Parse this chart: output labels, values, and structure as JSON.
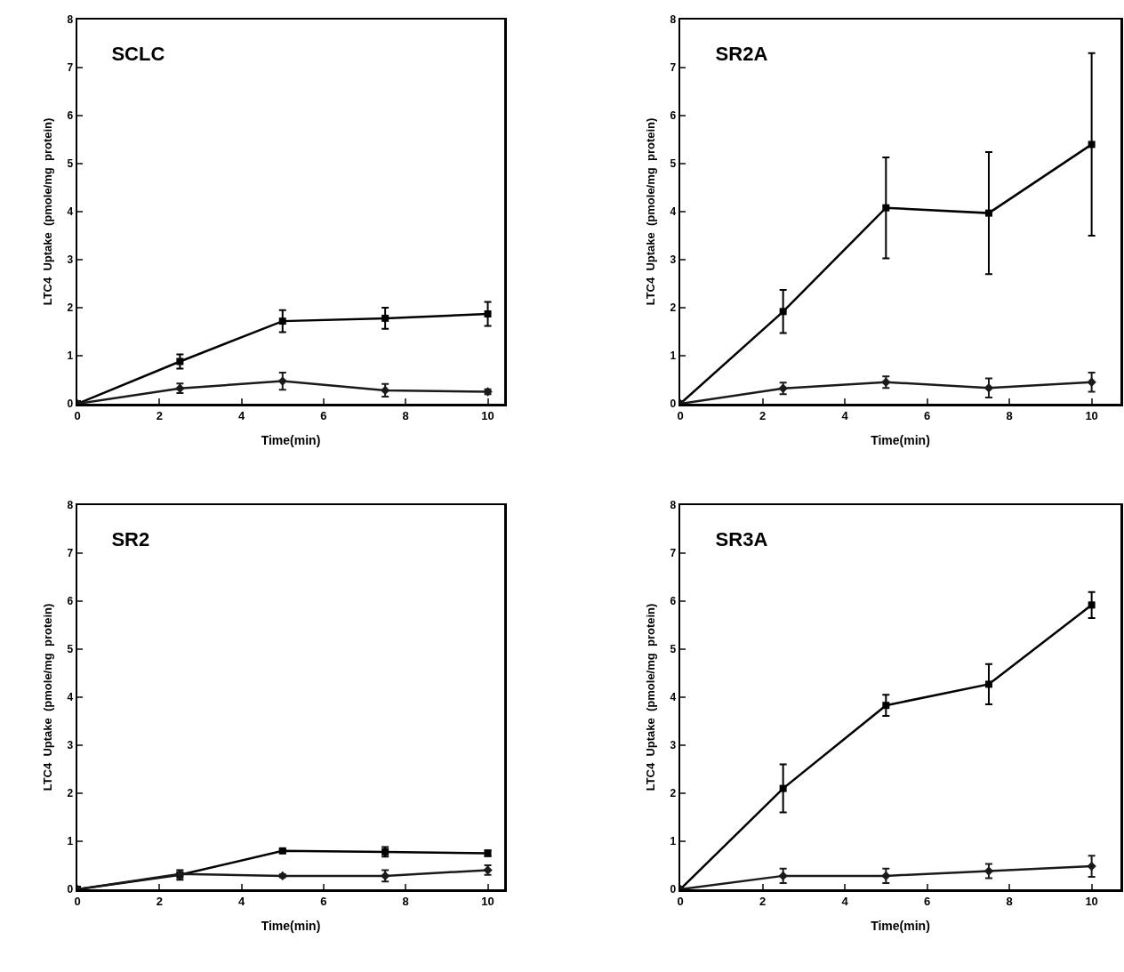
{
  "chart_data": [
    {
      "type": "line",
      "title": "SCLC",
      "xlabel": "Time(min)",
      "ylabel": "LTC4  Uptake  (pmole/mg  protein)",
      "x": [
        0,
        2.5,
        5,
        7.5,
        10
      ],
      "xlim": [
        0,
        10.4
      ],
      "xticks": [
        0,
        2,
        4,
        6,
        8,
        10
      ],
      "ylim": [
        0,
        8
      ],
      "yticks": [
        0,
        1,
        2,
        3,
        4,
        5,
        6,
        7,
        8
      ],
      "grid": false,
      "line_style": "solid",
      "series": [
        {
          "color": "#000000",
          "marker": "square",
          "values": [
            0,
            0.88,
            1.72,
            1.78,
            1.87
          ],
          "errors": [
            null,
            0.15,
            0.23,
            0.22,
            0.25
          ]
        },
        {
          "color": "#1a1a1a",
          "marker": "diamond",
          "values": [
            0,
            0.32,
            0.47,
            0.28,
            0.25
          ],
          "errors": [
            null,
            0.1,
            0.18,
            0.13,
            0.05
          ]
        }
      ]
    },
    {
      "type": "line",
      "title": "SR2A",
      "xlabel": "Time(min)",
      "ylabel": "LTC4  Uptake  (pmole/mg  protein)",
      "x": [
        0,
        2.5,
        5,
        7.5,
        10
      ],
      "xlim": [
        0,
        10.7
      ],
      "xticks": [
        0,
        2,
        4,
        6,
        8,
        10
      ],
      "ylim": [
        0,
        8
      ],
      "yticks": [
        0,
        1,
        2,
        3,
        4,
        5,
        6,
        7,
        8
      ],
      "grid": false,
      "line_style": "solid",
      "series": [
        {
          "color": "#000000",
          "marker": "square",
          "values": [
            0,
            1.92,
            4.08,
            3.97,
            5.4
          ],
          "errors": [
            null,
            0.45,
            1.05,
            1.27,
            1.9
          ]
        },
        {
          "color": "#1a1a1a",
          "marker": "diamond",
          "values": [
            0,
            0.32,
            0.45,
            0.33,
            0.45
          ],
          "errors": [
            null,
            0.12,
            0.12,
            0.2,
            0.2
          ]
        }
      ]
    },
    {
      "type": "line",
      "title": "SR2",
      "xlabel": "Time(min)",
      "ylabel": "LTC4  Uptake  (pmole/mg  protein)",
      "x": [
        0,
        2.5,
        5,
        7.5,
        10
      ],
      "xlim": [
        0,
        10.4
      ],
      "xticks": [
        0,
        2,
        4,
        6,
        8,
        10
      ],
      "ylim": [
        0,
        8
      ],
      "yticks": [
        0,
        1,
        2,
        3,
        4,
        5,
        6,
        7,
        8
      ],
      "grid": false,
      "line_style": "solid",
      "series": [
        {
          "color": "#000000",
          "marker": "square",
          "values": [
            0,
            0.3,
            0.8,
            0.78,
            0.75
          ],
          "errors": [
            null,
            0.1,
            0.03,
            0.1,
            0.06
          ]
        },
        {
          "color": "#1a1a1a",
          "marker": "diamond",
          "values": [
            0,
            0.32,
            0.28,
            0.28,
            0.4
          ],
          "errors": [
            null,
            0.02,
            0.03,
            0.12,
            0.1
          ]
        }
      ]
    },
    {
      "type": "line",
      "title": "SR3A",
      "xlabel": "Time(min)",
      "ylabel": "LTC4  Uptake  (pmole/mg  protein)",
      "x": [
        0,
        2.5,
        5,
        7.5,
        10
      ],
      "xlim": [
        0,
        10.7
      ],
      "xticks": [
        0,
        2,
        4,
        6,
        8,
        10
      ],
      "ylim": [
        0,
        8
      ],
      "yticks": [
        0,
        1,
        2,
        3,
        4,
        5,
        6,
        7,
        8
      ],
      "grid": false,
      "line_style": "solid",
      "series": [
        {
          "color": "#000000",
          "marker": "square",
          "values": [
            0,
            2.1,
            3.83,
            4.27,
            5.92
          ],
          "errors": [
            null,
            0.5,
            0.22,
            0.42,
            0.27
          ]
        },
        {
          "color": "#1a1a1a",
          "marker": "diamond",
          "values": [
            0,
            0.28,
            0.28,
            0.38,
            0.48
          ],
          "errors": [
            null,
            0.15,
            0.15,
            0.15,
            0.22
          ]
        }
      ]
    }
  ]
}
